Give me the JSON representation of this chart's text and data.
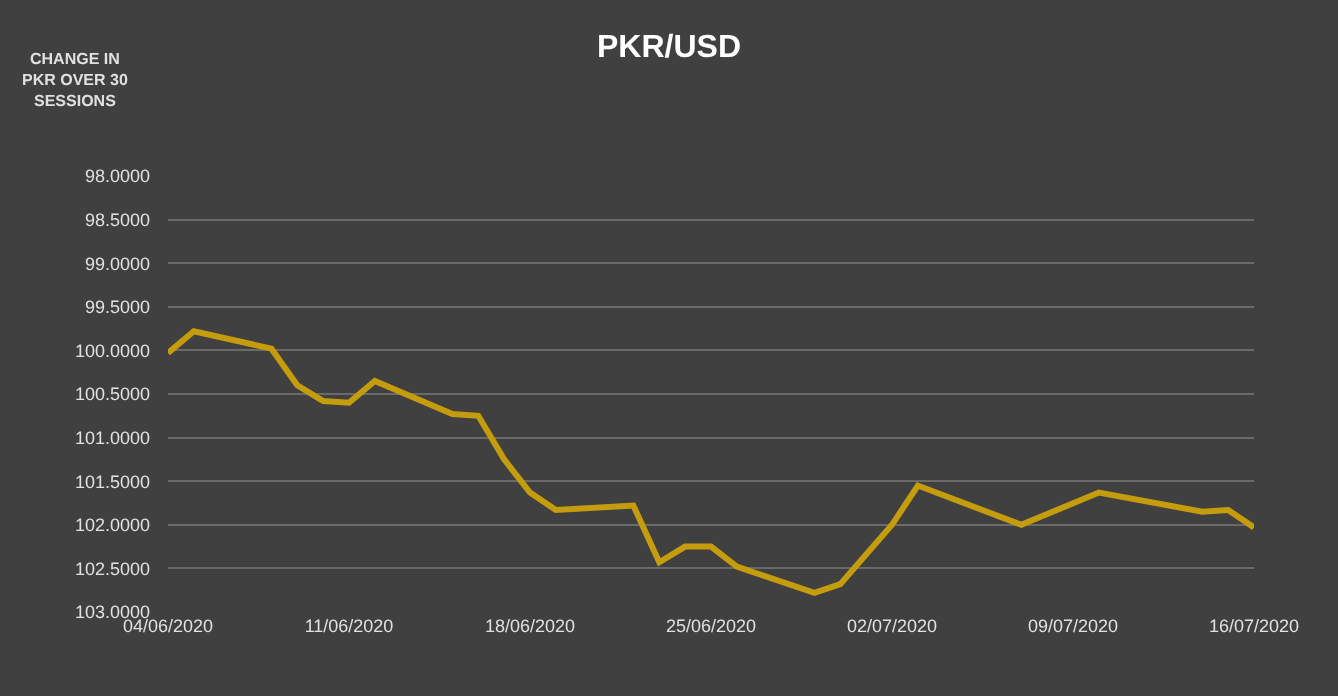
{
  "chart_data": {
    "type": "line",
    "title": "PKR/USD",
    "ylabel": "CHANGE IN PKR OVER 30 SESSIONS",
    "x": [
      "2020-06-04",
      "2020-06-05",
      "2020-06-08",
      "2020-06-09",
      "2020-06-10",
      "2020-06-11",
      "2020-06-12",
      "2020-06-15",
      "2020-06-16",
      "2020-06-17",
      "2020-06-18",
      "2020-06-19",
      "2020-06-22",
      "2020-06-23",
      "2020-06-24",
      "2020-06-25",
      "2020-06-26",
      "2020-06-29",
      "2020-06-30",
      "2020-07-02",
      "2020-07-03",
      "2020-07-07",
      "2020-07-10",
      "2020-07-14",
      "2020-07-15",
      "2020-07-16"
    ],
    "series": [
      {
        "color": "#c49c0c",
        "values": [
          100.03,
          99.78,
          99.98,
          100.4,
          100.58,
          100.6,
          100.35,
          100.73,
          100.75,
          101.25,
          101.63,
          101.83,
          101.78,
          102.43,
          102.25,
          102.25,
          102.48,
          102.78,
          102.68,
          102.0,
          101.55,
          102.0,
          101.63,
          101.85,
          101.83,
          102.03
        ]
      }
    ],
    "xlim": [
      "2020-06-04",
      "2020-07-16"
    ],
    "xticks": [
      {
        "value": "2020-06-04",
        "label": "04/06/2020"
      },
      {
        "value": "2020-06-11",
        "label": "11/06/2020"
      },
      {
        "value": "2020-06-18",
        "label": "18/06/2020"
      },
      {
        "value": "2020-06-25",
        "label": "25/06/2020"
      },
      {
        "value": "2020-07-02",
        "label": "02/07/2020"
      },
      {
        "value": "2020-07-09",
        "label": "09/07/2020"
      },
      {
        "value": "2020-07-16",
        "label": "16/07/2020"
      }
    ],
    "ylim": [
      103,
      98
    ],
    "yticks": [
      {
        "value": 98,
        "label": "98.0000"
      },
      {
        "value": 98.5,
        "label": "98.5000"
      },
      {
        "value": 99,
        "label": "99.0000"
      },
      {
        "value": 99.5,
        "label": "99.5000"
      },
      {
        "value": 100,
        "label": "100.0000"
      },
      {
        "value": 100.5,
        "label": "100.5000"
      },
      {
        "value": 101,
        "label": "101.0000"
      },
      {
        "value": 101.5,
        "label": "101.5000"
      },
      {
        "value": 102,
        "label": "102.0000"
      },
      {
        "value": 102.5,
        "label": "102.5000"
      },
      {
        "value": 103,
        "label": "103.0000"
      }
    ],
    "grid": "y",
    "marker": "none",
    "line_style": "solid"
  }
}
